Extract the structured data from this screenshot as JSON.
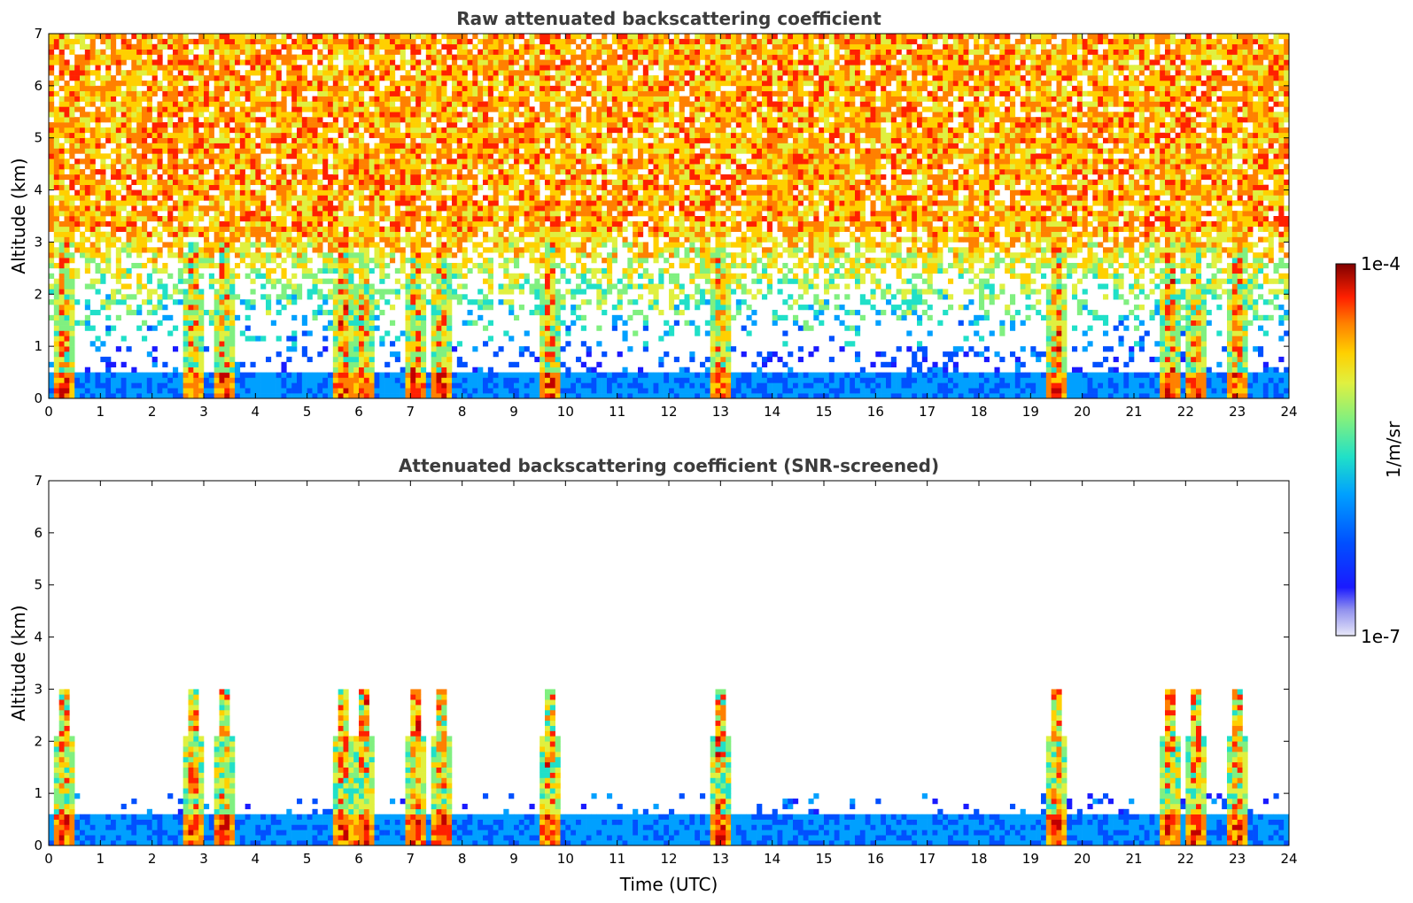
{
  "chart_data": [
    {
      "type": "heatmap",
      "title": "Raw attenuated backscattering coefficient",
      "xlabel": "",
      "ylabel": "Altitude (km)",
      "xlim": [
        0,
        24
      ],
      "ylim": [
        0,
        7
      ],
      "x_ticks": [
        "0",
        "1",
        "2",
        "3",
        "4",
        "5",
        "6",
        "7",
        "8",
        "9",
        "10",
        "11",
        "12",
        "13",
        "14",
        "15",
        "16",
        "17",
        "18",
        "19",
        "20",
        "21",
        "22",
        "23",
        "24"
      ],
      "y_ticks": [
        "0",
        "1",
        "2",
        "3",
        "4",
        "5",
        "6",
        "7"
      ],
      "description_values": {
        "boundary_layer_top_km": 0.5,
        "noise_floor_visible_above_km": 1.0,
        "low_cloud_tops_km": [
          0.3,
          0.4,
          1.5,
          2.0,
          2.5,
          3.0,
          3.5
        ],
        "strong_returns_hours": [
          0.3,
          2.8,
          3.4,
          5.7,
          6.1,
          7.1,
          7.6,
          9.7,
          13.0,
          19.5,
          21.7,
          22.2,
          23.0
        ]
      }
    },
    {
      "type": "heatmap",
      "title": "Attenuated backscattering coefficient (SNR-screened)",
      "xlabel": "Time (UTC)",
      "ylabel": "Altitude (km)",
      "xlim": [
        0,
        24
      ],
      "ylim": [
        0,
        7
      ],
      "x_ticks": [
        "0",
        "1",
        "2",
        "3",
        "4",
        "5",
        "6",
        "7",
        "8",
        "9",
        "10",
        "11",
        "12",
        "13",
        "14",
        "15",
        "16",
        "17",
        "18",
        "19",
        "20",
        "21",
        "22",
        "23",
        "24"
      ],
      "y_ticks": [
        "0",
        "1",
        "2",
        "3",
        "4",
        "5",
        "6",
        "7"
      ],
      "description_values": {
        "boundary_layer_top_km": 0.6,
        "screened_layer_top_km": 1.05
      }
    }
  ],
  "colorbar": {
    "label": "1/m/sr",
    "max_label": "1e-4",
    "min_label": "1e-7",
    "scale": "log",
    "colors": [
      "#e8e8f8",
      "#c8c8f0",
      "#9090ee",
      "#1a1aff",
      "#0050ff",
      "#00a0ff",
      "#20e0c8",
      "#80f080",
      "#e0f040",
      "#ffd000",
      "#ff8000",
      "#ff2000",
      "#c00000",
      "#800000"
    ]
  }
}
